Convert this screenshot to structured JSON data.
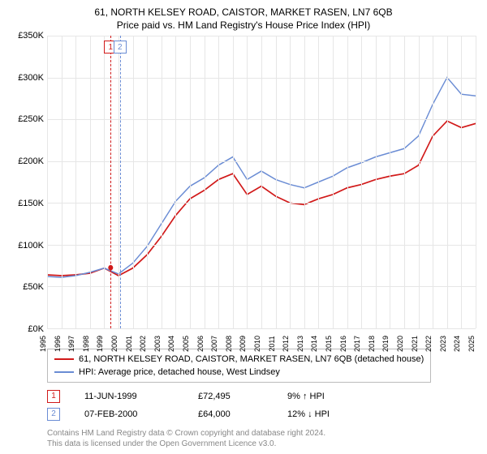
{
  "title": "61, NORTH KELSEY ROAD, CAISTOR, MARKET RASEN, LN7 6QB",
  "subtitle": "Price paid vs. HM Land Registry's House Price Index (HPI)",
  "chart": {
    "type": "line",
    "background_color": "#ffffff",
    "grid_color": "#e6e6e6",
    "axis_color": "#888888",
    "label_fontsize": 11,
    "ylim": [
      0,
      350000
    ],
    "ytick_step": 50000,
    "ylabels": [
      "£0K",
      "£50K",
      "£100K",
      "£150K",
      "£200K",
      "£250K",
      "£300K",
      "£350K"
    ],
    "xyears": [
      1995,
      1996,
      1997,
      1998,
      1999,
      2000,
      2001,
      2002,
      2003,
      2004,
      2005,
      2006,
      2007,
      2008,
      2009,
      2010,
      2011,
      2012,
      2013,
      2014,
      2015,
      2016,
      2017,
      2018,
      2019,
      2020,
      2021,
      2022,
      2023,
      2024,
      2025
    ],
    "series": [
      {
        "label": "61, NORTH KELSEY ROAD, CAISTOR, MARKET RASEN, LN7 6QB (detached house)",
        "color": "#d11919",
        "width": 1.6,
        "ys": [
          64000,
          63000,
          64000,
          66000,
          72000,
          63000,
          72000,
          88000,
          110000,
          135000,
          155000,
          165000,
          178000,
          185000,
          160000,
          170000,
          158000,
          150000,
          148000,
          155000,
          160000,
          168000,
          172000,
          178000,
          182000,
          185000,
          195000,
          230000,
          248000,
          240000,
          245000
        ]
      },
      {
        "label": "HPI: Average price, detached house, West Lindsey",
        "color": "#6a8cd4",
        "width": 1.4,
        "ys": [
          62000,
          61000,
          63000,
          67000,
          72000,
          65000,
          78000,
          98000,
          125000,
          152000,
          170000,
          180000,
          195000,
          205000,
          178000,
          188000,
          178000,
          172000,
          168000,
          175000,
          182000,
          192000,
          198000,
          205000,
          210000,
          215000,
          230000,
          268000,
          300000,
          280000,
          278000
        ]
      }
    ],
    "event_lines": [
      {
        "n": "1",
        "year_frac": 1999.45,
        "color": "#d11919"
      },
      {
        "n": "2",
        "year_frac": 2000.1,
        "color": "#6a8cd4"
      }
    ],
    "marker": {
      "year_frac": 1999.45,
      "y": 72495,
      "color": "#d11919",
      "radius": 3
    }
  },
  "legend": {
    "border_color": "#bbbbbb",
    "items": [
      {
        "color": "#d11919",
        "label": "61, NORTH KELSEY ROAD, CAISTOR, MARKET RASEN, LN7 6QB (detached house)"
      },
      {
        "color": "#6a8cd4",
        "label": "HPI: Average price, detached house, West Lindsey"
      }
    ]
  },
  "events": [
    {
      "n": "1",
      "color": "#d11919",
      "date": "11-JUN-1999",
      "price": "£72,495",
      "delta": "9% ↑ HPI"
    },
    {
      "n": "2",
      "color": "#6a8cd4",
      "date": "07-FEB-2000",
      "price": "£64,000",
      "delta": "12% ↓ HPI"
    }
  ],
  "footnote_line1": "Contains HM Land Registry data © Crown copyright and database right 2024.",
  "footnote_line2": "This data is licensed under the Open Government Licence v3.0."
}
